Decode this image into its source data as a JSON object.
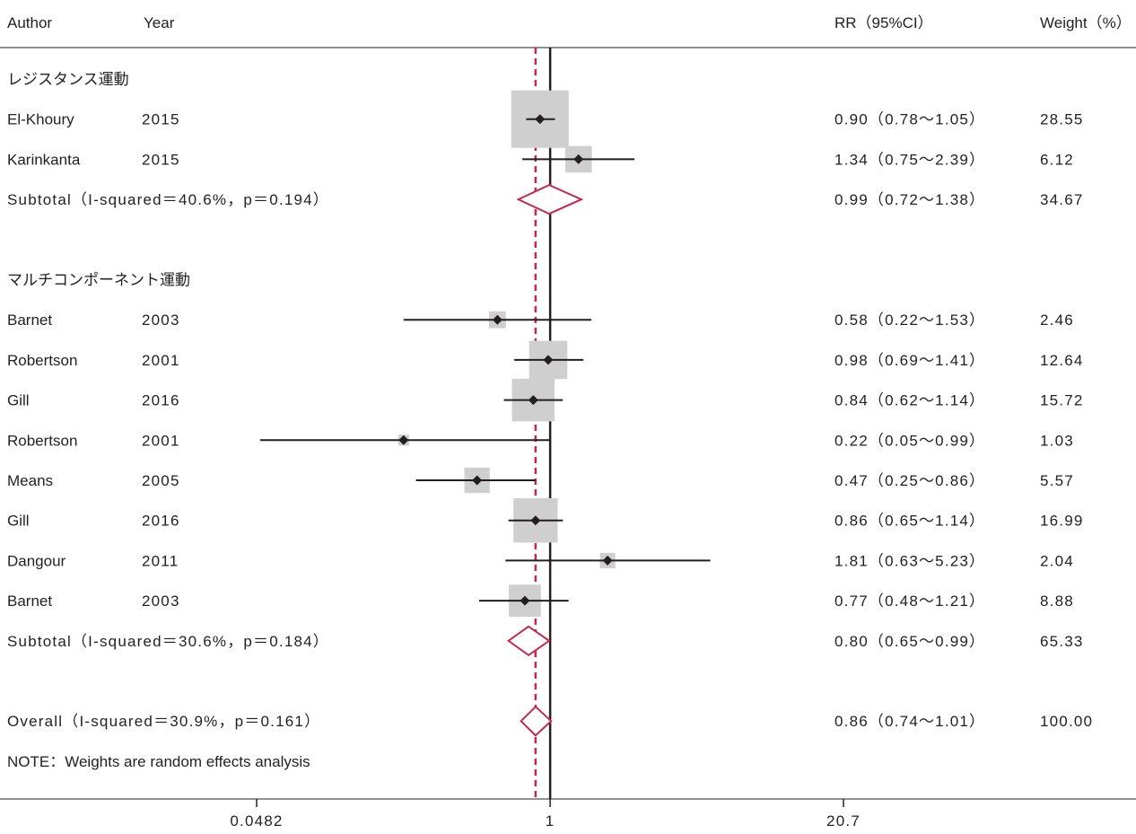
{
  "chart_data": {
    "type": "forest",
    "header": {
      "author": "Author",
      "year": "Year",
      "rr": "RR（95%CI）",
      "weight": "Weight（%）"
    },
    "axis": {
      "scale": "log",
      "ticks": [
        0.0482,
        1,
        20.7
      ],
      "tick_labels": [
        "0.0482",
        "1",
        "20.7"
      ],
      "xlim": [
        0.0482,
        20.7
      ],
      "null_line": 1
    },
    "overall_line": 0.86,
    "groups": [
      {
        "label": "レジスタンス運動",
        "studies": [
          {
            "author": "El-Khoury",
            "year": "2015",
            "rr": 0.9,
            "lo": 0.78,
            "hi": 1.05,
            "rr_text": "0.90（0.78～1.05）",
            "weight": 28.55,
            "weight_text": "28.55"
          },
          {
            "author": "Karinkanta",
            "year": "2015",
            "rr": 1.34,
            "lo": 0.75,
            "hi": 2.39,
            "rr_text": "1.34（0.75～2.39）",
            "weight": 6.12,
            "weight_text": "6.12"
          }
        ],
        "subtotal": {
          "label": "Subtotal（I-squared＝40.6%，p＝0.194）",
          "rr": 0.99,
          "lo": 0.72,
          "hi": 1.38,
          "rr_text": "0.99（0.72～1.38）",
          "weight_text": "34.67"
        }
      },
      {
        "label": "マルチコンポーネント運動",
        "studies": [
          {
            "author": "Barnet",
            "year": "2003",
            "rr": 0.58,
            "lo": 0.22,
            "hi": 1.53,
            "rr_text": "0.58（0.22～1.53）",
            "weight": 2.46,
            "weight_text": "2.46"
          },
          {
            "author": "Robertson",
            "year": "2001",
            "rr": 0.98,
            "lo": 0.69,
            "hi": 1.41,
            "rr_text": "0.98（0.69～1.41）",
            "weight": 12.64,
            "weight_text": "12.64"
          },
          {
            "author": "Gill",
            "year": "2016",
            "rr": 0.84,
            "lo": 0.62,
            "hi": 1.14,
            "rr_text": "0.84（0.62～1.14）",
            "weight": 15.72,
            "weight_text": "15.72"
          },
          {
            "author": "Robertson",
            "year": "2001",
            "rr": 0.22,
            "lo": 0.05,
            "hi": 0.99,
            "rr_text": "0.22（0.05～0.99）",
            "weight": 1.03,
            "weight_text": "1.03"
          },
          {
            "author": "Means",
            "year": "2005",
            "rr": 0.47,
            "lo": 0.25,
            "hi": 0.86,
            "rr_text": "0.47（0.25～0.86）",
            "weight": 5.57,
            "weight_text": "5.57"
          },
          {
            "author": "Gill",
            "year": "2016",
            "rr": 0.86,
            "lo": 0.65,
            "hi": 1.14,
            "rr_text": "0.86（0.65～1.14）",
            "weight": 16.99,
            "weight_text": "16.99"
          },
          {
            "author": "Dangour",
            "year": "2011",
            "rr": 1.81,
            "lo": 0.63,
            "hi": 5.23,
            "rr_text": "1.81（0.63～5.23）",
            "weight": 2.04,
            "weight_text": "2.04"
          },
          {
            "author": "Barnet",
            "year": "2003",
            "rr": 0.77,
            "lo": 0.48,
            "hi": 1.21,
            "rr_text": "0.77（0.48～1.21）",
            "weight": 8.88,
            "weight_text": "8.88"
          }
        ],
        "subtotal": {
          "label": "Subtotal（I-squared＝30.6%，p＝0.184）",
          "rr": 0.8,
          "lo": 0.65,
          "hi": 0.99,
          "rr_text": "0.80（0.65～0.99）",
          "weight_text": "65.33"
        }
      }
    ],
    "overall": {
      "label": "Overall（I-squared＝30.9%，p＝0.161）",
      "rr": 0.86,
      "lo": 0.74,
      "hi": 1.01,
      "rr_text": "0.86（0.74～1.01）",
      "weight_text": "100.00"
    },
    "note": "NOTE：Weights are random effects analysis",
    "colors": {
      "text": "#231f20",
      "line": "#231f20",
      "box": "#cfcfcf",
      "diamond": "#c8274a",
      "overall_line": "#c8274a"
    }
  }
}
